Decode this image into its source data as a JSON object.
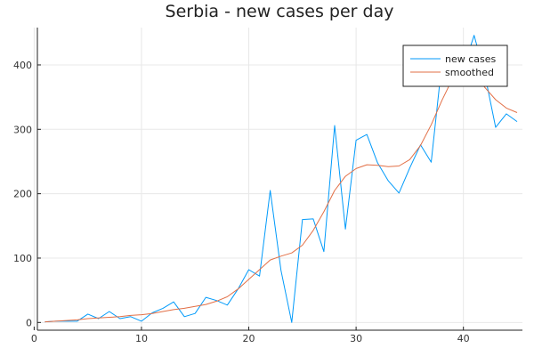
{
  "chart_data": {
    "type": "line",
    "title": "Serbia - new cases per day",
    "xlabel": "",
    "ylabel": "",
    "xlim": [
      0.3,
      45.5
    ],
    "ylim": [
      -12,
      458
    ],
    "x_ticks": [
      0,
      10,
      20,
      30,
      40
    ],
    "y_ticks": [
      0,
      100,
      200,
      300,
      400
    ],
    "grid": true,
    "legend_position": "top-right",
    "series": [
      {
        "name": "new cases",
        "color": "#009AFA",
        "x": [
          1,
          2,
          3,
          4,
          5,
          6,
          7,
          8,
          9,
          10,
          11,
          12,
          13,
          14,
          15,
          16,
          17,
          18,
          19,
          20,
          21,
          22,
          23,
          24,
          25,
          26,
          27,
          28,
          29,
          30,
          31,
          32,
          33,
          34,
          35,
          36,
          37,
          38,
          39,
          40,
          41,
          42,
          43,
          44,
          45
        ],
        "values": [
          1,
          2,
          2,
          2,
          13,
          6,
          17,
          6,
          9,
          2,
          15,
          22,
          32,
          9,
          14,
          39,
          34,
          27,
          52,
          82,
          72,
          205,
          81,
          0,
          160,
          161,
          110,
          306,
          145,
          283,
          292,
          248,
          220,
          201,
          240,
          276,
          249,
          404,
          418,
          395,
          446,
          385,
          303,
          324,
          312
        ]
      },
      {
        "name": "smoothed",
        "color": "#E26F46",
        "x": [
          1,
          2,
          3,
          4,
          5,
          6,
          7,
          8,
          9,
          10,
          11,
          12,
          13,
          14,
          15,
          16,
          17,
          18,
          19,
          20,
          21,
          22,
          23,
          24,
          25,
          26,
          27,
          28,
          29,
          30,
          31,
          32,
          33,
          34,
          35,
          36,
          37,
          38,
          39,
          40,
          41,
          42,
          43,
          44,
          45
        ],
        "values": [
          1,
          2,
          3,
          4,
          6,
          7,
          8,
          9,
          11,
          12,
          14,
          17,
          20,
          22,
          25,
          28,
          33,
          40,
          52,
          67,
          82,
          97,
          103,
          108,
          120,
          143,
          172,
          205,
          227,
          239,
          245,
          244,
          242,
          243,
          253,
          275,
          307,
          345,
          379,
          398,
          387,
          365,
          346,
          333,
          326
        ]
      }
    ]
  }
}
